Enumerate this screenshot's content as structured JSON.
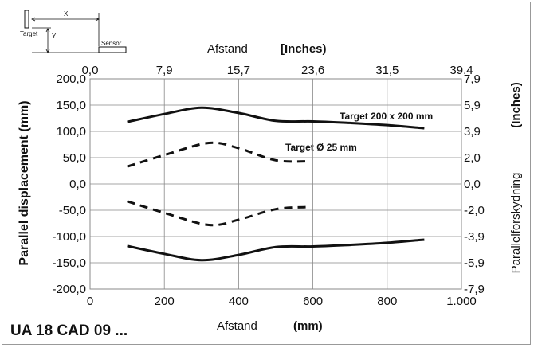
{
  "chart_data": {
    "type": "line",
    "xlabel_top": "Afstand",
    "xunit_top": "[Inches)",
    "xlabel_bottom": "Afstand",
    "xunit_bottom": "(mm)",
    "ylabel_left": "Parallel displacement (mm)",
    "ylabel_right_unit": "(Inches)",
    "ylabel_right": "Parallelforskydning",
    "xlim": [
      0,
      1000
    ],
    "ylim": [
      -200,
      200
    ],
    "x_ticks_bottom": [
      "0",
      "200",
      "400",
      "600",
      "800",
      "1.000"
    ],
    "x_ticks_top": [
      "0,0",
      "7,9",
      "15,7",
      "23,6",
      "31,5",
      "39,4"
    ],
    "y_ticks_left": [
      "200,0",
      "150,0",
      "100,0",
      "50,0",
      "0,0",
      "-50,0",
      "-100,0",
      "-150,0",
      "-200,0"
    ],
    "y_ticks_right": [
      "7,9",
      "5,9",
      "3,9",
      "2,0",
      "0,0",
      "-2,0",
      "-3,9",
      "-5,9",
      "-7,9"
    ],
    "grid": true,
    "series": [
      {
        "name": "Target 200 x 200 mm",
        "style": "solid",
        "x": [
          100,
          200,
          300,
          400,
          500,
          600,
          700,
          800,
          900
        ],
        "y": [
          118,
          133,
          145,
          135,
          120,
          119,
          116,
          112,
          106
        ]
      },
      {
        "name": "Target 200 x 200 mm",
        "style": "solid",
        "x": [
          100,
          200,
          300,
          400,
          500,
          600,
          700,
          800,
          900
        ],
        "y": [
          -118,
          -133,
          -145,
          -135,
          -120,
          -119,
          -116,
          -112,
          -106
        ]
      },
      {
        "name": "Target Ø 25 mm",
        "style": "dashed",
        "x": [
          100,
          200,
          320,
          400,
          500,
          590
        ],
        "y": [
          33,
          55,
          78,
          68,
          45,
          43
        ]
      },
      {
        "name": "Target Ø 25 mm",
        "style": "dashed",
        "x": [
          100,
          200,
          320,
          400,
          500,
          590
        ],
        "y": [
          -33,
          -55,
          -78,
          -68,
          -48,
          -44
        ]
      }
    ],
    "annotations": [
      "Target 200 x 200 mm",
      "Target Ø 25 mm"
    ]
  },
  "inset": {
    "target_label": "Target",
    "sensor_label": "Sensor",
    "x_label": "X",
    "y_label": "Y"
  },
  "footer": {
    "code": "UA 18 CAD 09 ..."
  },
  "colors": {
    "grid": "#888888",
    "line": "#111111"
  }
}
